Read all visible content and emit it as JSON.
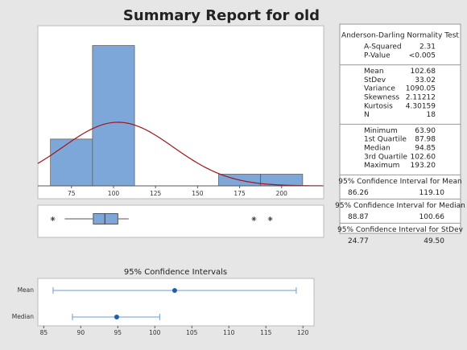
{
  "title": "Summary Report for old",
  "chart_data": [
    {
      "type": "histogram",
      "bins": [
        62.5,
        87.5,
        112.5,
        137.5,
        162.5,
        187.5,
        212.5
      ],
      "counts": [
        4,
        12,
        0,
        0,
        1,
        1
      ],
      "color": "#7da7d9",
      "fit": {
        "mean": 102.68,
        "stdev": 33.02,
        "n": 18,
        "color": "#a0151b"
      },
      "xlim": [
        55,
        225
      ],
      "xticks": [
        75,
        100,
        125,
        150,
        175,
        200
      ],
      "ylim": [
        0,
        13
      ]
    },
    {
      "type": "box",
      "whisker_low": 71,
      "q1": 87.98,
      "median": 94.85,
      "q3": 102.6,
      "whisker_high": 109,
      "outliers": [
        63.9,
        183.5,
        193.2
      ],
      "color": "#7da7d9",
      "xlim": [
        55,
        225
      ]
    },
    {
      "type": "interval",
      "title": "95% Confidence Intervals",
      "categories": [
        "Mean",
        "Median"
      ],
      "estimates": [
        102.68,
        94.85
      ],
      "lower": [
        86.26,
        88.87
      ],
      "upper": [
        119.1,
        100.66
      ],
      "color": "#1f5fa5",
      "line_color": "#6b9bd2",
      "xlim": [
        84.2,
        121.5
      ],
      "xticks": [
        85,
        90,
        95,
        100,
        105,
        110,
        115,
        120
      ]
    }
  ],
  "stats_table": {
    "sections": [
      {
        "heading": "Anderson-Darling Normality Test",
        "rows": [
          [
            "A-Squared",
            "2.31"
          ],
          [
            "P-Value",
            "<0.005"
          ]
        ]
      },
      {
        "rows": [
          [
            "Mean",
            "102.68"
          ],
          [
            "StDev",
            "33.02"
          ],
          [
            "Variance",
            "1090.05"
          ],
          [
            "Skewness",
            "2.11212"
          ],
          [
            "Kurtosis",
            "4.30159"
          ],
          [
            "N",
            "18"
          ]
        ]
      },
      {
        "rows": [
          [
            "Minimum",
            "63.90"
          ],
          [
            "1st Quartile",
            "87.98"
          ],
          [
            "Median",
            "94.85"
          ],
          [
            "3rd Quartile",
            "102.60"
          ],
          [
            "Maximum",
            "193.20"
          ]
        ]
      },
      {
        "heading": "95% Confidence Interval for Mean",
        "rows": [
          [
            "86.26",
            "119.10"
          ]
        ]
      },
      {
        "heading": "95% Confidence Interval for Median",
        "rows": [
          [
            "88.87",
            "100.66"
          ]
        ]
      },
      {
        "heading": "95% Confidence Interval for StDev",
        "rows": [
          [
            "24.77",
            "49.50"
          ]
        ]
      }
    ]
  }
}
